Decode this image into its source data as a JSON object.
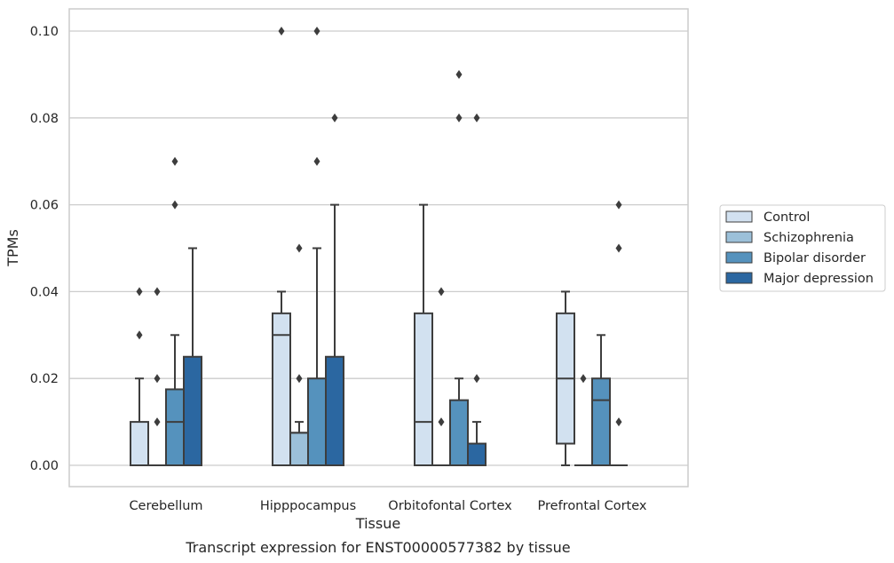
{
  "chart_data": {
    "type": "box",
    "xlabel": "Tissue",
    "ylabel": "TPMs",
    "caption": "Transcript expression for ENST00000577382 by tissue",
    "ylim": [
      -0.005,
      0.105
    ],
    "yticks": [
      0.0,
      0.02,
      0.04,
      0.06,
      0.08,
      0.1
    ],
    "ytick_labels": [
      "0.00",
      "0.02",
      "0.04",
      "0.06",
      "0.08",
      "0.10"
    ],
    "grid": "horizontal",
    "legend_position": "right",
    "categories": [
      "Cerebellum",
      "Hipppocampus",
      "Orbitofontal Cortex",
      "Prefrontal Cortex"
    ],
    "series": [
      {
        "name": "Control",
        "color": "#d2e1f0",
        "boxes": [
          {
            "min": 0.0,
            "q1": 0.0,
            "median": 0.0,
            "q3": 0.01,
            "max": 0.02,
            "outliers": [
              0.03,
              0.04
            ]
          },
          {
            "min": 0.0,
            "q1": 0.0,
            "median": 0.03,
            "q3": 0.035,
            "max": 0.04,
            "outliers": [
              0.1
            ]
          },
          {
            "min": 0.0,
            "q1": 0.0,
            "median": 0.01,
            "q3": 0.035,
            "max": 0.06,
            "outliers": []
          },
          {
            "min": 0.0,
            "q1": 0.005,
            "median": 0.02,
            "q3": 0.035,
            "max": 0.04,
            "outliers": []
          }
        ]
      },
      {
        "name": "Schizophrenia",
        "color": "#9cc0d9",
        "boxes": [
          {
            "min": 0.0,
            "q1": 0.0,
            "median": 0.0,
            "q3": 0.0,
            "max": 0.0,
            "outliers": [
              0.01,
              0.02,
              0.04
            ]
          },
          {
            "min": 0.0,
            "q1": 0.0,
            "median": 0.0075,
            "q3": 0.0075,
            "max": 0.01,
            "outliers": [
              0.02,
              0.05
            ]
          },
          {
            "min": 0.0,
            "q1": 0.0,
            "median": 0.0,
            "q3": 0.0,
            "max": 0.0,
            "outliers": [
              0.01,
              0.04
            ]
          },
          {
            "min": 0.0,
            "q1": 0.0,
            "median": 0.0,
            "q3": 0.0,
            "max": 0.0,
            "outliers": [
              0.02
            ]
          }
        ]
      },
      {
        "name": "Bipolar disorder",
        "color": "#5592bd",
        "boxes": [
          {
            "min": 0.0,
            "q1": 0.0,
            "median": 0.01,
            "q3": 0.0175,
            "max": 0.03,
            "outliers": [
              0.06,
              0.07
            ]
          },
          {
            "min": 0.0,
            "q1": 0.0,
            "median": 0.0,
            "q3": 0.02,
            "max": 0.05,
            "outliers": [
              0.07,
              0.1
            ]
          },
          {
            "min": 0.0,
            "q1": 0.0,
            "median": 0.0,
            "q3": 0.015,
            "max": 0.02,
            "outliers": [
              0.08,
              0.09
            ]
          },
          {
            "min": 0.0,
            "q1": 0.0,
            "median": 0.015,
            "q3": 0.02,
            "max": 0.03,
            "outliers": []
          }
        ]
      },
      {
        "name": "Major depression",
        "color": "#2b67a1",
        "boxes": [
          {
            "min": 0.0,
            "q1": 0.0,
            "median": 0.0,
            "q3": 0.025,
            "max": 0.05,
            "outliers": []
          },
          {
            "min": 0.0,
            "q1": 0.0,
            "median": 0.0,
            "q3": 0.025,
            "max": 0.06,
            "outliers": [
              0.08
            ]
          },
          {
            "min": 0.0,
            "q1": 0.0,
            "median": 0.0,
            "q3": 0.005,
            "max": 0.01,
            "outliers": [
              0.02,
              0.08
            ]
          },
          {
            "min": 0.0,
            "q1": 0.0,
            "median": 0.0,
            "q3": 0.0,
            "max": 0.0,
            "outliers": [
              0.01,
              0.05,
              0.06
            ]
          }
        ]
      }
    ]
  }
}
